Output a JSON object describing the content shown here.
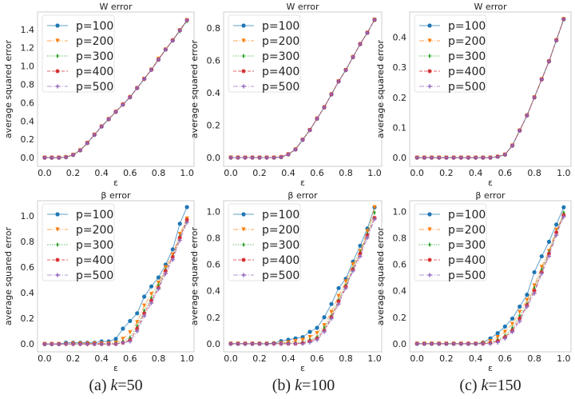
{
  "colors": [
    "#1f77b4",
    "#ff7f0e",
    "#2ca02c",
    "#d62728",
    "#9467bd"
  ],
  "captions": [
    {
      "prefix": "(a) ",
      "k": "k",
      "value": "=50"
    },
    {
      "prefix": "(b) ",
      "k": "k",
      "value": "=100"
    },
    {
      "prefix": "(c) ",
      "k": "k",
      "value": "=150"
    }
  ],
  "chart_data": [
    {
      "type": "line",
      "title": "W error",
      "xlabel": "ε",
      "ylabel": "average squared error",
      "xlim": [
        -0.05,
        1.05
      ],
      "ylim": [
        -0.095,
        1.59
      ],
      "xticks": [
        "0.0",
        "0.2",
        "0.4",
        "0.6",
        "0.8",
        "1.0"
      ],
      "yticks": [
        "0.0",
        "0.2",
        "0.4",
        "0.6",
        "0.8",
        "1.0",
        "1.2",
        "1.4"
      ],
      "legend": "upper-left",
      "x": [
        0,
        0.05,
        0.1,
        0.15,
        0.2,
        0.25,
        0.3,
        0.35,
        0.4,
        0.45,
        0.5,
        0.55,
        0.6,
        0.65,
        0.7,
        0.75,
        0.8,
        0.85,
        0.9,
        0.95,
        1.0
      ],
      "series": [
        {
          "name": "p=100",
          "values": [
            0,
            0,
            0,
            0.005,
            0.03,
            0.08,
            0.16,
            0.25,
            0.34,
            0.42,
            0.5,
            0.58,
            0.66,
            0.76,
            0.86,
            0.96,
            1.07,
            1.18,
            1.28,
            1.39,
            1.5
          ]
        },
        {
          "name": "p=200",
          "values": [
            0,
            0,
            0,
            0.005,
            0.03,
            0.08,
            0.16,
            0.25,
            0.34,
            0.42,
            0.5,
            0.58,
            0.66,
            0.76,
            0.86,
            0.96,
            1.08,
            1.18,
            1.28,
            1.39,
            1.5
          ]
        },
        {
          "name": "p=300",
          "values": [
            0,
            0,
            0,
            0.005,
            0.03,
            0.08,
            0.16,
            0.25,
            0.34,
            0.42,
            0.5,
            0.58,
            0.66,
            0.76,
            0.86,
            0.96,
            1.07,
            1.18,
            1.28,
            1.38,
            1.49
          ]
        },
        {
          "name": "p=400",
          "values": [
            0,
            0,
            0,
            0.005,
            0.03,
            0.08,
            0.16,
            0.25,
            0.34,
            0.42,
            0.5,
            0.58,
            0.66,
            0.76,
            0.86,
            0.96,
            1.07,
            1.18,
            1.28,
            1.39,
            1.5
          ]
        },
        {
          "name": "p=500",
          "values": [
            0,
            0,
            0,
            0.005,
            0.03,
            0.08,
            0.16,
            0.25,
            0.34,
            0.42,
            0.5,
            0.58,
            0.66,
            0.76,
            0.86,
            0.96,
            1.07,
            1.18,
            1.28,
            1.39,
            1.5
          ]
        }
      ]
    },
    {
      "type": "line",
      "title": "W error",
      "xlabel": "ε",
      "ylabel": "average squared error",
      "xlim": [
        -0.05,
        1.05
      ],
      "ylim": [
        -0.054,
        0.898
      ],
      "xticks": [
        "0.0",
        "0.2",
        "0.4",
        "0.6",
        "0.8",
        "1.0"
      ],
      "yticks": [
        "0.0",
        "0.2",
        "0.4",
        "0.6",
        "0.8"
      ],
      "legend": "upper-left",
      "x": [
        0,
        0.05,
        0.1,
        0.15,
        0.2,
        0.25,
        0.3,
        0.35,
        0.4,
        0.45,
        0.5,
        0.55,
        0.6,
        0.65,
        0.7,
        0.75,
        0.8,
        0.85,
        0.9,
        0.95,
        1.0
      ],
      "series": [
        {
          "name": "p=100",
          "values": [
            0,
            0,
            0,
            0,
            0,
            0,
            0,
            0.003,
            0.02,
            0.05,
            0.11,
            0.17,
            0.24,
            0.31,
            0.39,
            0.47,
            0.54,
            0.62,
            0.7,
            0.77,
            0.85
          ]
        },
        {
          "name": "p=200",
          "values": [
            0,
            0,
            0,
            0,
            0,
            0,
            0,
            0.003,
            0.02,
            0.05,
            0.11,
            0.17,
            0.24,
            0.31,
            0.39,
            0.47,
            0.54,
            0.62,
            0.7,
            0.77,
            0.85
          ]
        },
        {
          "name": "p=300",
          "values": [
            0,
            0,
            0,
            0,
            0,
            0,
            0,
            0.003,
            0.02,
            0.05,
            0.11,
            0.17,
            0.24,
            0.31,
            0.39,
            0.47,
            0.54,
            0.62,
            0.7,
            0.77,
            0.85
          ]
        },
        {
          "name": "p=400",
          "values": [
            0,
            0,
            0,
            0,
            0,
            0,
            0,
            0.003,
            0.02,
            0.05,
            0.11,
            0.17,
            0.24,
            0.31,
            0.39,
            0.47,
            0.54,
            0.62,
            0.7,
            0.77,
            0.85
          ]
        },
        {
          "name": "p=500",
          "values": [
            0,
            0,
            0,
            0,
            0,
            0,
            0,
            0.003,
            0.02,
            0.05,
            0.11,
            0.17,
            0.24,
            0.31,
            0.39,
            0.47,
            0.54,
            0.62,
            0.7,
            0.77,
            0.85
          ]
        }
      ]
    },
    {
      "type": "line",
      "title": "W error",
      "xlabel": "ε",
      "ylabel": "average squared error",
      "xlim": [
        -0.05,
        1.05
      ],
      "ylim": [
        -0.029,
        0.484
      ],
      "xticks": [
        "0.0",
        "0.2",
        "0.4",
        "0.6",
        "0.8",
        "1.0"
      ],
      "yticks": [
        "0.0",
        "0.1",
        "0.2",
        "0.3",
        "0.4"
      ],
      "legend": "upper-left",
      "x": [
        0,
        0.05,
        0.1,
        0.15,
        0.2,
        0.25,
        0.3,
        0.35,
        0.4,
        0.45,
        0.5,
        0.55,
        0.6,
        0.65,
        0.7,
        0.75,
        0.8,
        0.85,
        0.9,
        0.95,
        1.0
      ],
      "series": [
        {
          "name": "p=100",
          "values": [
            0,
            0,
            0,
            0,
            0,
            0,
            0,
            0,
            0,
            0,
            0,
            0.003,
            0.01,
            0.04,
            0.09,
            0.14,
            0.2,
            0.26,
            0.32,
            0.39,
            0.46
          ]
        },
        {
          "name": "p=200",
          "values": [
            0,
            0,
            0,
            0,
            0,
            0,
            0,
            0,
            0,
            0,
            0,
            0.003,
            0.01,
            0.04,
            0.09,
            0.14,
            0.2,
            0.26,
            0.32,
            0.39,
            0.46
          ]
        },
        {
          "name": "p=300",
          "values": [
            0,
            0,
            0,
            0,
            0,
            0,
            0,
            0,
            0,
            0,
            0,
            0.003,
            0.01,
            0.04,
            0.09,
            0.14,
            0.2,
            0.26,
            0.32,
            0.39,
            0.46
          ]
        },
        {
          "name": "p=400",
          "values": [
            0,
            0,
            0,
            0,
            0,
            0,
            0,
            0,
            0,
            0,
            0,
            0.003,
            0.01,
            0.04,
            0.09,
            0.14,
            0.2,
            0.26,
            0.32,
            0.39,
            0.46
          ]
        },
        {
          "name": "p=500",
          "values": [
            0,
            0,
            0,
            0,
            0,
            0,
            0,
            0,
            0,
            0,
            0,
            0.003,
            0.01,
            0.04,
            0.09,
            0.14,
            0.2,
            0.26,
            0.32,
            0.39,
            0.46
          ]
        }
      ]
    },
    {
      "type": "line",
      "title": "β error",
      "xlabel": "ε",
      "ylabel": "average squared error",
      "xlim": [
        -0.05,
        1.05
      ],
      "ylim": [
        -0.061,
        1.12
      ],
      "xticks": [
        "0.0",
        "0.2",
        "0.4",
        "0.6",
        "0.8",
        "1.0"
      ],
      "yticks": [
        "0.0",
        "0.2",
        "0.4",
        "0.6",
        "0.8",
        "1.0"
      ],
      "legend": "upper-left",
      "x": [
        0,
        0.05,
        0.1,
        0.15,
        0.2,
        0.25,
        0.3,
        0.35,
        0.4,
        0.45,
        0.5,
        0.55,
        0.6,
        0.65,
        0.7,
        0.75,
        0.8,
        0.85,
        0.9,
        0.95,
        1.0
      ],
      "series": [
        {
          "name": "p=100",
          "values": [
            0,
            0,
            0,
            0.01,
            0.01,
            0.01,
            0.01,
            0.01,
            0.02,
            0.02,
            0.04,
            0.12,
            0.18,
            0.24,
            0.37,
            0.45,
            0.52,
            0.62,
            0.74,
            0.94,
            1.07
          ]
        },
        {
          "name": "p=200",
          "values": [
            0,
            0,
            0,
            0,
            0.005,
            0.005,
            0.005,
            0.005,
            0.005,
            0.005,
            0.01,
            0.04,
            0.09,
            0.17,
            0.3,
            0.39,
            0.48,
            0.6,
            0.7,
            0.86,
            0.98
          ]
        },
        {
          "name": "p=300",
          "values": [
            0,
            0,
            0,
            0,
            0,
            0,
            0,
            0,
            0,
            0,
            0.005,
            0.02,
            0.05,
            0.14,
            0.26,
            0.36,
            0.46,
            0.58,
            0.68,
            0.84,
            0.96
          ]
        },
        {
          "name": "p=400",
          "values": [
            0,
            0,
            0,
            0,
            0,
            0,
            0,
            0,
            0,
            0,
            0,
            0.01,
            0.03,
            0.12,
            0.24,
            0.34,
            0.44,
            0.57,
            0.68,
            0.83,
            0.97
          ]
        },
        {
          "name": "p=500",
          "values": [
            0,
            0,
            0,
            0,
            0,
            0,
            0,
            0,
            0,
            0,
            0,
            0.01,
            0.02,
            0.1,
            0.22,
            0.32,
            0.43,
            0.55,
            0.66,
            0.81,
            0.95
          ]
        }
      ]
    },
    {
      "type": "line",
      "title": "β error",
      "xlabel": "ε",
      "ylabel": "average squared error",
      "xlim": [
        -0.05,
        1.05
      ],
      "ylim": [
        -0.061,
        1.08
      ],
      "xticks": [
        "0.0",
        "0.2",
        "0.4",
        "0.6",
        "0.8",
        "1.0"
      ],
      "yticks": [
        "0.0",
        "0.2",
        "0.4",
        "0.6",
        "0.8",
        "1.0"
      ],
      "legend": "upper-left",
      "x": [
        0,
        0.05,
        0.1,
        0.15,
        0.2,
        0.25,
        0.3,
        0.35,
        0.4,
        0.45,
        0.5,
        0.55,
        0.6,
        0.65,
        0.7,
        0.75,
        0.8,
        0.85,
        0.9,
        0.95,
        1.0
      ],
      "series": [
        {
          "name": "p=100",
          "values": [
            0,
            0,
            0,
            0,
            0,
            0,
            0.005,
            0.02,
            0.03,
            0.04,
            0.05,
            0.09,
            0.12,
            0.2,
            0.3,
            0.42,
            0.49,
            0.62,
            0.74,
            0.87,
            1.03
          ]
        },
        {
          "name": "p=200",
          "values": [
            0,
            0,
            0,
            0,
            0,
            0,
            0,
            0.005,
            0.01,
            0.02,
            0.03,
            0.05,
            0.08,
            0.14,
            0.24,
            0.36,
            0.47,
            0.6,
            0.7,
            0.85,
            1.03
          ]
        },
        {
          "name": "p=300",
          "values": [
            0,
            0,
            0,
            0,
            0,
            0,
            0,
            0,
            0.005,
            0.005,
            0.01,
            0.03,
            0.05,
            0.12,
            0.21,
            0.33,
            0.44,
            0.57,
            0.69,
            0.83,
            0.99
          ]
        },
        {
          "name": "p=400",
          "values": [
            0,
            0,
            0,
            0,
            0,
            0,
            0,
            0,
            0,
            0,
            0.005,
            0.02,
            0.04,
            0.1,
            0.2,
            0.32,
            0.43,
            0.56,
            0.68,
            0.82,
            0.95
          ]
        },
        {
          "name": "p=500",
          "values": [
            0,
            0,
            0,
            0,
            0,
            0,
            0,
            0,
            0,
            0,
            0,
            0.01,
            0.03,
            0.09,
            0.19,
            0.3,
            0.42,
            0.55,
            0.66,
            0.8,
            0.94
          ]
        }
      ]
    },
    {
      "type": "line",
      "title": "β error",
      "xlabel": "ε",
      "ylabel": "average squared error",
      "xlim": [
        -0.05,
        1.05
      ],
      "ylim": [
        -0.061,
        1.08
      ],
      "xticks": [
        "0.0",
        "0.2",
        "0.4",
        "0.6",
        "0.8",
        "1.0"
      ],
      "yticks": [
        "0.0",
        "0.2",
        "0.4",
        "0.6",
        "0.8",
        "1.0"
      ],
      "legend": "upper-left",
      "x": [
        0,
        0.05,
        0.1,
        0.15,
        0.2,
        0.25,
        0.3,
        0.35,
        0.4,
        0.45,
        0.5,
        0.55,
        0.6,
        0.65,
        0.7,
        0.75,
        0.8,
        0.85,
        0.9,
        0.95,
        1.0
      ],
      "series": [
        {
          "name": "p=100",
          "values": [
            0,
            0,
            0,
            0,
            0,
            0,
            0,
            0,
            0,
            0.01,
            0.04,
            0.08,
            0.13,
            0.19,
            0.28,
            0.37,
            0.54,
            0.66,
            0.77,
            0.9,
            1.03
          ]
        },
        {
          "name": "p=200",
          "values": [
            0,
            0,
            0,
            0,
            0,
            0,
            0,
            0,
            0,
            0.005,
            0.02,
            0.05,
            0.09,
            0.15,
            0.24,
            0.33,
            0.44,
            0.58,
            0.7,
            0.86,
            0.97
          ]
        },
        {
          "name": "p=300",
          "values": [
            0,
            0,
            0,
            0,
            0,
            0,
            0,
            0,
            0,
            0,
            0.01,
            0.03,
            0.06,
            0.12,
            0.21,
            0.3,
            0.42,
            0.56,
            0.69,
            0.84,
            0.99
          ]
        },
        {
          "name": "p=400",
          "values": [
            0,
            0,
            0,
            0,
            0,
            0,
            0,
            0,
            0,
            0,
            0.005,
            0.02,
            0.05,
            0.1,
            0.19,
            0.29,
            0.4,
            0.54,
            0.68,
            0.84,
            0.97
          ]
        },
        {
          "name": "p=500",
          "values": [
            0,
            0,
            0,
            0,
            0,
            0,
            0,
            0,
            0,
            0,
            0,
            0.01,
            0.04,
            0.09,
            0.17,
            0.28,
            0.38,
            0.53,
            0.66,
            0.82,
            0.96
          ]
        }
      ]
    }
  ]
}
